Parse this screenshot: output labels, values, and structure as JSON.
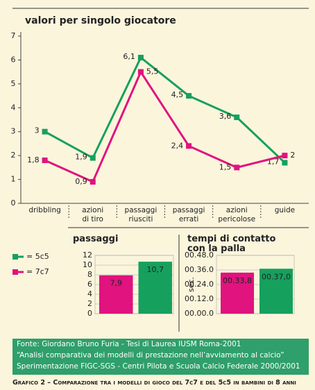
{
  "chart_data": [
    {
      "type": "line",
      "title": "valori per singolo giocatore",
      "categories": [
        "dribbling",
        "azioni\ndi tiro",
        "passaggi\nriusciti",
        "passaggi\nerrati",
        "azioni\npericolose",
        "guide"
      ],
      "series": [
        {
          "name": "= 5c5",
          "color": "#16a05e",
          "values": [
            3,
            1.9,
            6.1,
            4.5,
            3.6,
            1.7
          ],
          "value_labels": [
            "3",
            "1,9",
            "6,1",
            "4,5",
            "3,6",
            "1,7"
          ]
        },
        {
          "name": "= 7c7",
          "color": "#e0137f",
          "values": [
            1.8,
            0.9,
            5.5,
            2.4,
            1.5,
            2
          ],
          "value_labels": [
            "1,8",
            "0,9",
            "5,5",
            "2,4",
            "1,5",
            "2"
          ]
        }
      ],
      "ylim": [
        0,
        7
      ],
      "yticks": [
        0,
        1,
        2,
        3,
        4,
        5,
        6,
        7
      ]
    },
    {
      "type": "bar",
      "title": "passaggi",
      "values": [
        7.9,
        10.7
      ],
      "value_labels": [
        "7,9",
        "10,7"
      ],
      "colors": [
        "#e0137f",
        "#16a05e"
      ],
      "ylim": [
        0,
        12
      ],
      "yticks": [
        0,
        2,
        4,
        6,
        8,
        10,
        12
      ]
    },
    {
      "type": "bar",
      "title": "tempi di contatto\ncon la palla",
      "y_label": "sec.",
      "values": [
        33.8,
        37.0
      ],
      "value_labels": [
        "00.33,8",
        "00.37,0"
      ],
      "colors": [
        "#e0137f",
        "#16a05e"
      ],
      "ylim": [
        0,
        48
      ],
      "yticks": [
        {
          "value": 0,
          "label": "00.00.0"
        },
        {
          "value": 12,
          "label": "00.12.0"
        },
        {
          "value": 24,
          "label": "00.24.0"
        },
        {
          "value": 36,
          "label": "00.36.0"
        },
        {
          "value": 48,
          "label": "00.48.0"
        }
      ]
    }
  ],
  "source": [
    "Fonte: Giordano Bruno Furia - Tesi di Laurea IUSM Roma-2001",
    "“Analisi comparativa dei modelli di prestazione nell’avviamento al calcio”",
    "Sperimentazione FIGC-SGS - Centri Pilota e Scuola Calcio Federale 2000/2001"
  ],
  "caption": "Grafico 2 – Comparazione tra i modelli di gioco del 7c7 e del 5c5 in bambini di 8 anni"
}
